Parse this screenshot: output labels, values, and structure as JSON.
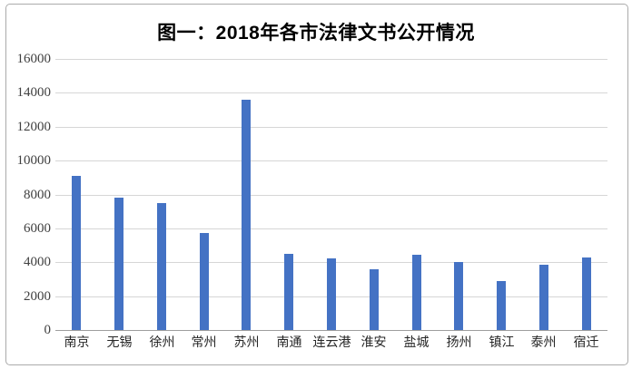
{
  "chart_data": {
    "type": "bar",
    "title": "图一：2018年各市法律文书公开情况",
    "categories": [
      "南京",
      "无锡",
      "徐州",
      "常州",
      "苏州",
      "南通",
      "连云港",
      "淮安",
      "盐城",
      "扬州",
      "镇江",
      "泰州",
      "宿迁"
    ],
    "values": [
      9100,
      7800,
      7500,
      5700,
      13600,
      4500,
      4250,
      3600,
      4450,
      4000,
      2900,
      3850,
      4300
    ],
    "xlabel": "",
    "ylabel": "",
    "ylim": [
      0,
      16000
    ],
    "y_ticks": [
      0,
      2000,
      4000,
      6000,
      8000,
      10000,
      12000,
      14000,
      16000
    ],
    "grid": "horizontal",
    "legend": "none",
    "bar_color": "#4472C4",
    "gridline_color": "#d6d6d6",
    "axis_line_color": "#9e9e9e",
    "tick_label_color": "#404040",
    "frame_border_color": "#ababab"
  }
}
